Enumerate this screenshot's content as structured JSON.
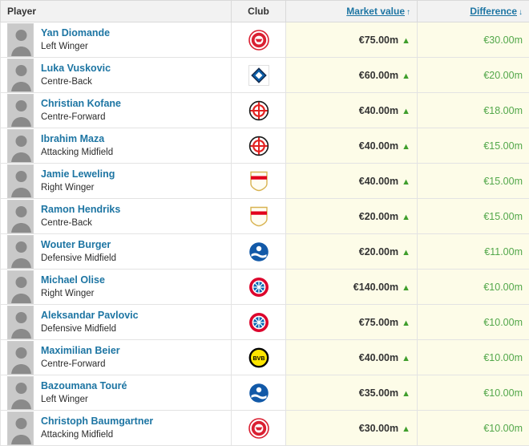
{
  "header": {
    "player": "Player",
    "club": "Club",
    "market_value": "Market value",
    "difference": "Difference"
  },
  "icons": {
    "sort_up": "↑",
    "sort_down": "↓",
    "increase": "▲"
  },
  "colors": {
    "link_blue": "#1d75a3",
    "increase_green": "#3f9e2c",
    "difference_green": "#52a74a",
    "value_column_bg": "#fdfce8",
    "header_bg": "#f2f2f2"
  },
  "rows": [
    {
      "name": "Yan Diomande",
      "position": "Left Winger",
      "club_id": "leipzig",
      "club_icon": "rb-leipzig-crest-icon",
      "market_value": "€75.00m",
      "difference": "€30.00m"
    },
    {
      "name": "Luka Vuskovic",
      "position": "Centre-Back",
      "club_id": "hamburg",
      "club_icon": "hamburger-sv-crest-icon",
      "market_value": "€60.00m",
      "difference": "€20.00m"
    },
    {
      "name": "Christian Kofane",
      "position": "Centre-Forward",
      "club_id": "leverkusen",
      "club_icon": "bayer-leverkusen-crest-icon",
      "market_value": "€40.00m",
      "difference": "€18.00m"
    },
    {
      "name": "Ibrahim Maza",
      "position": "Attacking Midfield",
      "club_id": "leverkusen",
      "club_icon": "bayer-leverkusen-crest-icon",
      "market_value": "€40.00m",
      "difference": "€15.00m"
    },
    {
      "name": "Jamie Leweling",
      "position": "Right Winger",
      "club_id": "stuttgart",
      "club_icon": "vfb-stuttgart-crest-icon",
      "market_value": "€40.00m",
      "difference": "€15.00m"
    },
    {
      "name": "Ramon Hendriks",
      "position": "Centre-Back",
      "club_id": "stuttgart",
      "club_icon": "vfb-stuttgart-crest-icon",
      "market_value": "€20.00m",
      "difference": "€15.00m"
    },
    {
      "name": "Wouter Burger",
      "position": "Defensive Midfield",
      "club_id": "hoffenheim",
      "club_icon": "tsg-hoffenheim-crest-icon",
      "market_value": "€20.00m",
      "difference": "€11.00m"
    },
    {
      "name": "Michael Olise",
      "position": "Right Winger",
      "club_id": "bayern",
      "club_icon": "bayern-munich-crest-icon",
      "market_value": "€140.00m",
      "difference": "€10.00m"
    },
    {
      "name": "Aleksandar Pavlovic",
      "position": "Defensive Midfield",
      "club_id": "bayern",
      "club_icon": "bayern-munich-crest-icon",
      "market_value": "€75.00m",
      "difference": "€10.00m"
    },
    {
      "name": "Maximilian Beier",
      "position": "Centre-Forward",
      "club_id": "dortmund",
      "club_icon": "borussia-dortmund-crest-icon",
      "market_value": "€40.00m",
      "difference": "€10.00m"
    },
    {
      "name": "Bazoumana Touré",
      "position": "Left Winger",
      "club_id": "hoffenheim",
      "club_icon": "tsg-hoffenheim-crest-icon",
      "market_value": "€35.00m",
      "difference": "€10.00m"
    },
    {
      "name": "Christoph Baumgartner",
      "position": "Attacking Midfield",
      "club_id": "leipzig",
      "club_icon": "rb-leipzig-crest-icon",
      "market_value": "€30.00m",
      "difference": "€10.00m"
    }
  ]
}
